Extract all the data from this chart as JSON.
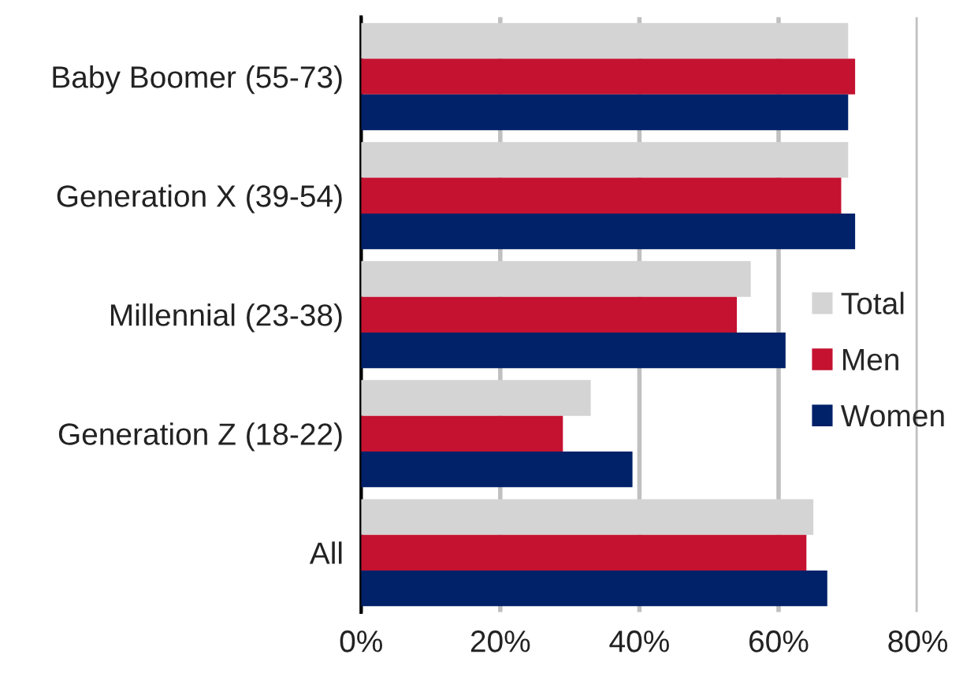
{
  "chart_data": {
    "type": "bar",
    "orientation": "horizontal",
    "categories": [
      "Baby Boomer (55-73)",
      "Generation X (39-54)",
      "Millennial (23-38)",
      "Generation Z (18-22)",
      "All"
    ],
    "series": [
      {
        "name": "Total",
        "color": "#d4d4d4",
        "values": [
          70,
          70,
          56,
          33,
          65
        ]
      },
      {
        "name": "Men",
        "color": "#c41230",
        "values": [
          71,
          69,
          54,
          29,
          64
        ]
      },
      {
        "name": "Women",
        "color": "#012169",
        "values": [
          70,
          71,
          61,
          39,
          67
        ]
      }
    ],
    "xlim": [
      0,
      80
    ],
    "xticks": [
      {
        "value": 0,
        "label": "0%"
      },
      {
        "value": 20,
        "label": "20%"
      },
      {
        "value": 40,
        "label": "40%"
      },
      {
        "value": 60,
        "label": "60%"
      },
      {
        "value": 80,
        "label": "80%"
      }
    ],
    "grid": "x",
    "legend": "right"
  }
}
